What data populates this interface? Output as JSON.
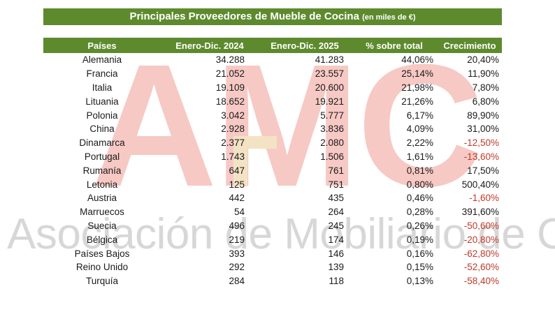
{
  "title": "Principales Proveedores de Mueble de Cocina",
  "title_unit": "(en miles de €)",
  "watermark": {
    "logo_letters": "AMC",
    "text": "Asociación de Mobiliario de Cocina"
  },
  "colors": {
    "header_bg": "#5e8a2e",
    "negative": "#c0392b"
  },
  "table": {
    "headers": [
      "Países",
      "Enero-Dic. 2024",
      "Enero-Dic. 2025",
      "% sobre total",
      "Crecimiento"
    ],
    "rows": [
      [
        "Alemania",
        "34.288",
        "41.283",
        "44,06%",
        "20,40%"
      ],
      [
        "Francia",
        "21.052",
        "23.557",
        "25,14%",
        "11,90%"
      ],
      [
        "Italia",
        "19.109",
        "20.600",
        "21,98%",
        "7,80%"
      ],
      [
        "Lituania",
        "18.652",
        "19.921",
        "21,26%",
        "6,80%"
      ],
      [
        "Polonia",
        "3.042",
        "5.777",
        "6,17%",
        "89,90%"
      ],
      [
        "China",
        "2.928",
        "3.836",
        "4,09%",
        "31,00%"
      ],
      [
        "Dinamarca",
        "2.377",
        "2.080",
        "2,22%",
        "-12,50%"
      ],
      [
        "Portugal",
        "1.743",
        "1.506",
        "1,61%",
        "-13,60%"
      ],
      [
        "Rumanía",
        "647",
        "761",
        "0,81%",
        "17,50%"
      ],
      [
        "Letonia",
        "125",
        "751",
        "0,80%",
        "500,40%"
      ],
      [
        "Austria",
        "442",
        "435",
        "0,46%",
        "-1,60%"
      ],
      [
        "Marruecos",
        "54",
        "264",
        "0,28%",
        "391,60%"
      ],
      [
        "Suecia",
        "496",
        "245",
        "0,26%",
        "-50,60%"
      ],
      [
        "Bélgica",
        "219",
        "174",
        "0,19%",
        "-20,80%"
      ],
      [
        "Países Bajos",
        "393",
        "146",
        "0,16%",
        "-62,80%"
      ],
      [
        "Reino Unido",
        "292",
        "139",
        "0,15%",
        "-52,60%"
      ],
      [
        "Turquía",
        "284",
        "118",
        "0,13%",
        "-58,40%"
      ]
    ]
  }
}
